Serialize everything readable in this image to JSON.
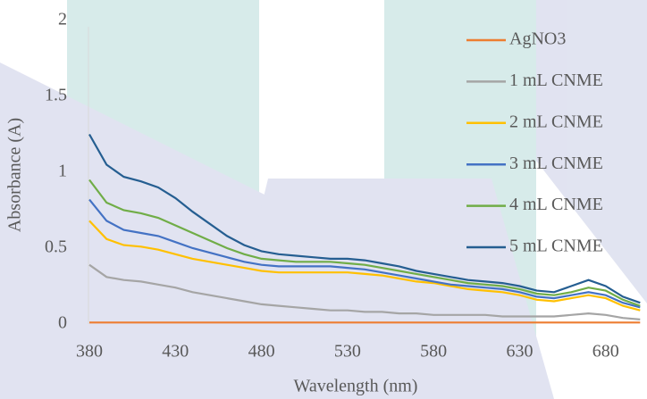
{
  "chart_data": {
    "type": "line",
    "x_label": "Wavelength (nm)",
    "y_label": "Absorbance (A)",
    "x": [
      380,
      390,
      400,
      410,
      420,
      430,
      440,
      450,
      460,
      470,
      480,
      490,
      500,
      510,
      520,
      530,
      540,
      550,
      560,
      570,
      580,
      590,
      600,
      610,
      620,
      630,
      640,
      650,
      660,
      670,
      680,
      690,
      700
    ],
    "xlim": [
      380,
      704
    ],
    "xticks": [
      380,
      430,
      480,
      530,
      580,
      630,
      680
    ],
    "ylim": [
      0,
      2
    ],
    "yticks": [
      0,
      0.5,
      1,
      1.5,
      2
    ],
    "grid": false,
    "legend": "top-right",
    "series": [
      {
        "name": "AgNO3",
        "color": "#ed7d31",
        "values": [
          0.01,
          0.01,
          0.01,
          0.01,
          0.01,
          0.01,
          0.01,
          0.01,
          0.01,
          0.01,
          0.01,
          0.01,
          0.01,
          0.01,
          0.01,
          0.01,
          0.01,
          0.01,
          0.01,
          0.01,
          0.01,
          0.01,
          0.01,
          0.01,
          0.01,
          0.01,
          0.01,
          0.01,
          0.01,
          0.01,
          0.01,
          0.01,
          0.01
        ]
      },
      {
        "name": "1 mL CNME",
        "color": "#a5a5a5",
        "values": [
          0.39,
          0.31,
          0.29,
          0.28,
          0.26,
          0.24,
          0.21,
          0.19,
          0.17,
          0.15,
          0.13,
          0.12,
          0.11,
          0.1,
          0.09,
          0.09,
          0.08,
          0.08,
          0.07,
          0.07,
          0.06,
          0.06,
          0.06,
          0.06,
          0.05,
          0.05,
          0.05,
          0.05,
          0.06,
          0.07,
          0.06,
          0.04,
          0.03
        ]
      },
      {
        "name": "2 mL CNME",
        "color": "#ffc000",
        "values": [
          0.68,
          0.56,
          0.52,
          0.51,
          0.49,
          0.46,
          0.43,
          0.41,
          0.39,
          0.37,
          0.35,
          0.34,
          0.34,
          0.34,
          0.34,
          0.34,
          0.33,
          0.32,
          0.3,
          0.28,
          0.27,
          0.25,
          0.23,
          0.22,
          0.21,
          0.19,
          0.16,
          0.15,
          0.17,
          0.19,
          0.17,
          0.12,
          0.09
        ]
      },
      {
        "name": "3 mL CNME",
        "color": "#4472c4",
        "values": [
          0.82,
          0.68,
          0.62,
          0.6,
          0.58,
          0.54,
          0.5,
          0.47,
          0.44,
          0.41,
          0.39,
          0.38,
          0.38,
          0.38,
          0.38,
          0.37,
          0.36,
          0.34,
          0.32,
          0.3,
          0.28,
          0.26,
          0.25,
          0.24,
          0.23,
          0.21,
          0.18,
          0.17,
          0.19,
          0.21,
          0.19,
          0.14,
          0.11
        ]
      },
      {
        "name": "4 mL CNME",
        "color": "#70ad47",
        "values": [
          0.95,
          0.8,
          0.75,
          0.73,
          0.7,
          0.65,
          0.6,
          0.55,
          0.5,
          0.46,
          0.43,
          0.42,
          0.41,
          0.41,
          0.41,
          0.4,
          0.39,
          0.37,
          0.35,
          0.33,
          0.31,
          0.29,
          0.27,
          0.26,
          0.25,
          0.23,
          0.2,
          0.19,
          0.21,
          0.24,
          0.22,
          0.16,
          0.12
        ]
      },
      {
        "name": "5 mL CNME",
        "color": "#255e91",
        "values": [
          1.25,
          1.05,
          0.97,
          0.94,
          0.9,
          0.83,
          0.74,
          0.66,
          0.58,
          0.52,
          0.48,
          0.46,
          0.45,
          0.44,
          0.43,
          0.43,
          0.42,
          0.4,
          0.38,
          0.35,
          0.33,
          0.31,
          0.29,
          0.28,
          0.27,
          0.25,
          0.22,
          0.21,
          0.25,
          0.29,
          0.25,
          0.18,
          0.14
        ]
      }
    ]
  }
}
